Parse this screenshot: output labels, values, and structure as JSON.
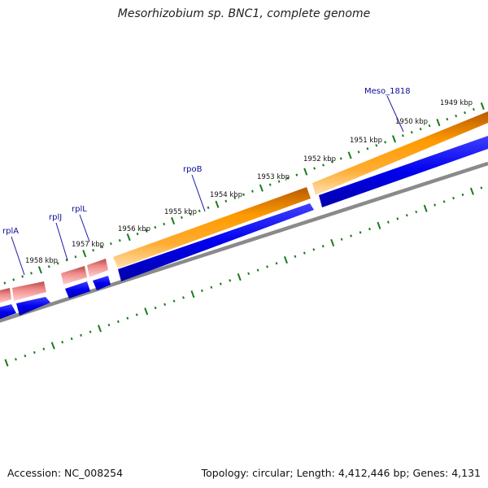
{
  "title": "Mesorhizobium sp. BNC1, complete genome",
  "footer": {
    "accession": "Accession: NC_008254",
    "summary": "Topology: circular; Length: 4,412,446 bp; Genes: 4,131"
  },
  "colors": {
    "forward_cds": "#ff9900",
    "forward_rrna": "#f08a8a",
    "reverse_cds": "#0000ee",
    "backbone": "#888888",
    "ticks": "#1a7a1a",
    "gene_label": "#0b0b9a"
  },
  "kbp_labels": [
    "1949 kbp",
    "1950 kbp",
    "1951 kbp",
    "1952 kbp",
    "1953 kbp",
    "1954 kbp",
    "1955 kbp",
    "1956 kbp",
    "1957 kbp",
    "1958 kbp"
  ],
  "gene_labels": [
    "Meso_1818",
    "rpoB",
    "rplL",
    "rplJ",
    "rplA"
  ]
}
